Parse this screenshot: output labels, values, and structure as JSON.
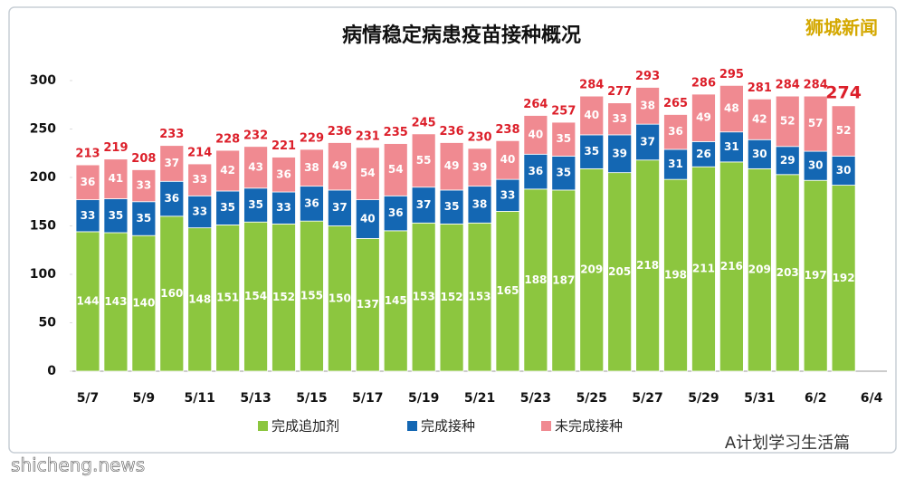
{
  "chart_data": {
    "type": "stacked-bar",
    "title": "病情稳定病患疫苗接种概况",
    "categories": [
      "5/7",
      null,
      "5/9",
      null,
      "5/11",
      null,
      "5/13",
      null,
      "5/15",
      null,
      "5/17",
      null,
      "5/19",
      null,
      "5/21",
      null,
      "5/23",
      null,
      "5/25",
      null,
      "5/27",
      null,
      "5/29",
      null,
      "5/31",
      null,
      "6/2",
      null,
      "6/4"
    ],
    "series": [
      {
        "name": "完成追加剂",
        "color": "#8cc63f",
        "values": [
          144,
          143,
          140,
          160,
          148,
          151,
          154,
          152,
          155,
          150,
          137,
          145,
          153,
          152,
          153,
          165,
          188,
          187,
          209,
          205,
          218,
          198,
          211,
          216,
          209,
          203,
          197,
          192,
          null
        ]
      },
      {
        "name": "完成接种",
        "color": "#1467b3",
        "values": [
          33,
          35,
          35,
          36,
          33,
          35,
          35,
          33,
          36,
          37,
          40,
          36,
          37,
          35,
          38,
          33,
          36,
          35,
          35,
          39,
          37,
          31,
          26,
          31,
          30,
          29,
          30,
          30,
          null
        ]
      },
      {
        "name": "未完成接种",
        "color": "#f08a91",
        "values": [
          36,
          41,
          33,
          37,
          33,
          42,
          43,
          36,
          38,
          49,
          54,
          54,
          55,
          49,
          39,
          40,
          40,
          35,
          40,
          33,
          38,
          36,
          49,
          48,
          42,
          52,
          57,
          52,
          null
        ]
      }
    ],
    "totals": [
      213,
      219,
      208,
      233,
      214,
      228,
      232,
      221,
      229,
      236,
      231,
      235,
      245,
      236,
      230,
      238,
      264,
      257,
      284,
      277,
      293,
      265,
      286,
      295,
      281,
      284,
      284,
      274,
      null
    ],
    "ylim": [
      0,
      300
    ],
    "yticks": [
      0,
      50,
      100,
      150,
      200,
      250,
      300
    ],
    "watermark": "狮城新闻",
    "source_site": "shicheng.news",
    "account": "A计划学习生活篇"
  }
}
